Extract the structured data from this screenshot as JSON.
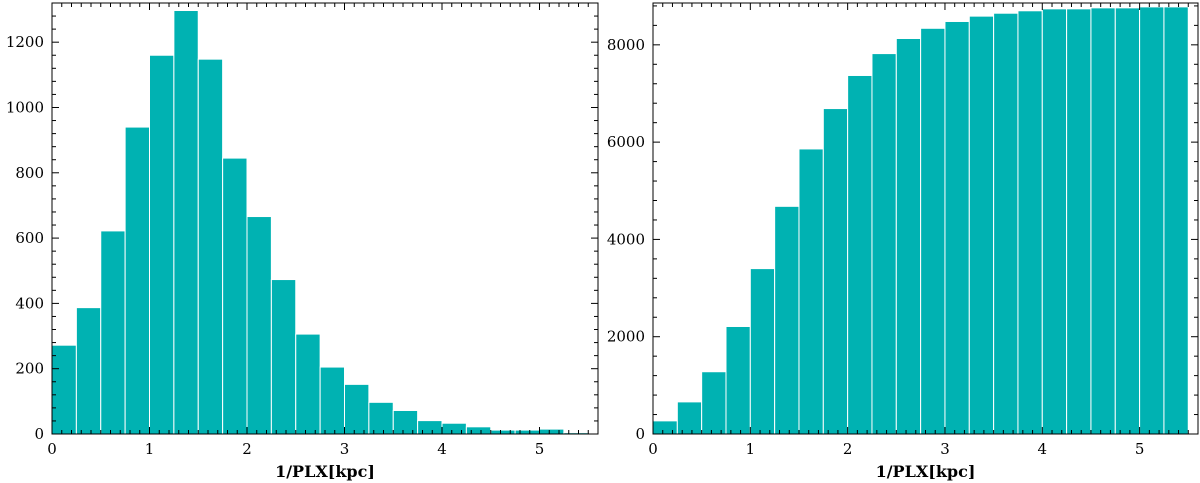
{
  "bar_color": "#00b2b2",
  "bar_edge_color": "#ffffff",
  "chart_data": [
    {
      "type": "bar",
      "title": "",
      "xlabel": "1/PLX[kpc]",
      "ylabel": "",
      "bin_width": 0.25,
      "xlim": [
        0,
        5.6
      ],
      "ylim": [
        0,
        1320
      ],
      "xticks": [
        0,
        1,
        2,
        3,
        4,
        5
      ],
      "yticks": [
        0,
        200,
        400,
        600,
        800,
        1000,
        1200
      ],
      "bin_starts": [
        0,
        0.25,
        0.5,
        0.75,
        1.0,
        1.25,
        1.5,
        1.75,
        2.0,
        2.25,
        2.5,
        2.75,
        3.0,
        3.25,
        3.5,
        3.75,
        4.0,
        4.25,
        4.5,
        4.75,
        5.0,
        5.25
      ],
      "values": [
        272,
        387,
        622,
        940,
        1160,
        1297,
        1148,
        845,
        666,
        473,
        306,
        205,
        152,
        97,
        72,
        41,
        33,
        22,
        12,
        12,
        15,
        4
      ],
      "grid": false
    },
    {
      "type": "bar",
      "title": "",
      "xlabel": "1/PLX[kpc]",
      "ylabel": "",
      "bin_width": 0.25,
      "xlim": [
        0,
        5.6
      ],
      "ylim": [
        0,
        8860
      ],
      "xticks": [
        0,
        1,
        2,
        3,
        4,
        5
      ],
      "yticks": [
        0,
        2000,
        4000,
        6000,
        8000
      ],
      "bin_starts": [
        0,
        0.25,
        0.5,
        0.75,
        1.0,
        1.25,
        1.5,
        1.75,
        2.0,
        2.25,
        2.5,
        2.75,
        3.0,
        3.25,
        3.5,
        3.75,
        4.0,
        4.25,
        4.5,
        4.75,
        5.0,
        5.25
      ],
      "values": [
        270,
        660,
        1280,
        2210,
        3400,
        4680,
        5860,
        6690,
        7370,
        7820,
        8130,
        8340,
        8480,
        8590,
        8650,
        8700,
        8740,
        8740,
        8760,
        8760,
        8780,
        8780
      ],
      "grid": false
    }
  ]
}
